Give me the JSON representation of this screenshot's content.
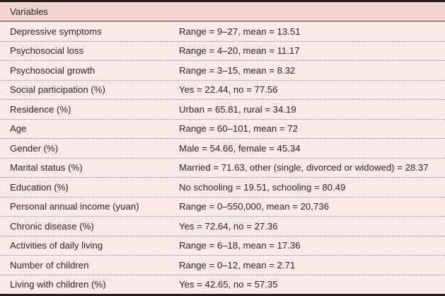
{
  "colors": {
    "page_bg": "#faeae7",
    "header_bg": "#f5d3d0",
    "border_dark": "#241d1d",
    "header_rule": "#8e8b8b",
    "row_divider": "#8f8c8c",
    "text": "#2b2727"
  },
  "table": {
    "title": "Variables",
    "rows": [
      {
        "variable": "Depressive symptoms",
        "value": "Range = 9–27, mean = 13.51"
      },
      {
        "variable": "Psychosocial loss",
        "value": "Range = 4–20, mean = 11.17"
      },
      {
        "variable": "Psychosocial growth",
        "value": "Range = 3–15, mean = 8.32"
      },
      {
        "variable": "Social participation (%)",
        "value": "Yes = 22.44, no = 77.56"
      },
      {
        "variable": "Residence (%)",
        "value": "Urban = 65.81, rural = 34.19"
      },
      {
        "variable": "Age",
        "value": "Range = 60–101, mean = 72"
      },
      {
        "variable": "Gender (%)",
        "value": "Male = 54.66, female = 45.34"
      },
      {
        "variable": "Marital status (%)",
        "value": "Married = 71.63, other (single, divorced or widowed) = 28.37"
      },
      {
        "variable": "Education (%)",
        "value": "No schooling = 19.51, schooling = 80.49"
      },
      {
        "variable": "Personal annual income (yuan)",
        "value": "Range = 0–550,000, mean = 20,736"
      },
      {
        "variable": "Chronic disease (%)",
        "value": "Yes = 72.64, no = 27.36"
      },
      {
        "variable": "Activities of daily living",
        "value": "Range = 6–18, mean = 17.36"
      },
      {
        "variable": "Number of children",
        "value": "Range = 0–12, mean = 2.71"
      },
      {
        "variable": "Living with children (%)",
        "value": "Yes = 42.65, no = 57.35"
      }
    ]
  }
}
